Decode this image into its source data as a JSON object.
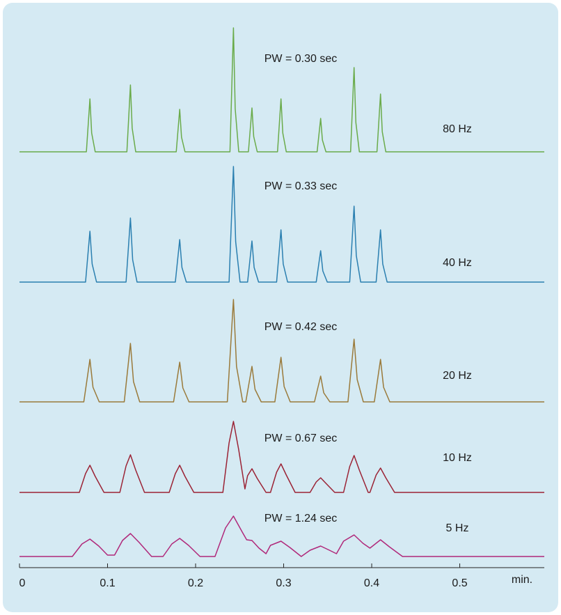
{
  "chart_data": {
    "type": "line",
    "x_label": "min.",
    "xlim": [
      0,
      0.596
    ],
    "xticks": [
      0,
      0.1,
      0.2,
      0.3,
      0.4,
      0.5
    ],
    "ylim": [
      0,
      180
    ],
    "series": [
      {
        "name": "80 Hz",
        "annotation": "PW = 0.30 sec",
        "color": "#6aab4a",
        "x": [
          0,
          0.076,
          0.08,
          0.082,
          0.086,
          0.122,
          0.126,
          0.128,
          0.132,
          0.178,
          0.182,
          0.184,
          0.188,
          0.239,
          0.243,
          0.245,
          0.249,
          0.26,
          0.264,
          0.266,
          0.27,
          0.293,
          0.297,
          0.299,
          0.303,
          0.338,
          0.342,
          0.344,
          0.348,
          0.376,
          0.38,
          0.382,
          0.386,
          0.406,
          0.41,
          0.412,
          0.416,
          0.596
        ],
        "values": [
          0,
          0,
          76,
          27,
          0,
          0,
          96,
          34,
          0,
          0,
          61,
          21,
          0,
          0,
          178,
          62,
          0,
          0,
          63,
          22,
          0,
          0,
          76,
          27,
          0,
          0,
          48,
          17,
          0,
          0,
          121,
          42,
          0,
          0,
          83,
          29,
          0,
          0
        ]
      },
      {
        "name": "40 Hz",
        "annotation": "PW = 0.33 sec",
        "color": "#2a7fb0",
        "x": [
          0,
          0.075,
          0.08,
          0.0825,
          0.0875,
          0.121,
          0.126,
          0.1285,
          0.1335,
          0.177,
          0.182,
          0.1845,
          0.1895,
          0.238,
          0.243,
          0.2455,
          0.2505,
          0.259,
          0.264,
          0.2665,
          0.2715,
          0.292,
          0.297,
          0.2995,
          0.3045,
          0.337,
          0.342,
          0.3445,
          0.3495,
          0.375,
          0.38,
          0.3825,
          0.3875,
          0.405,
          0.41,
          0.4125,
          0.4175,
          0.596
        ],
        "values": [
          0,
          0,
          73,
          26,
          0,
          0,
          92,
          32,
          0,
          0,
          61,
          21,
          0,
          0,
          166,
          58,
          0,
          0,
          59,
          21,
          0,
          0,
          75,
          26,
          0,
          0,
          45,
          16,
          0,
          0,
          109,
          38,
          0,
          0,
          75,
          26,
          0,
          0
        ]
      },
      {
        "name": "20 Hz",
        "annotation": "PW = 0.42 sec",
        "color": "#9a7a3a",
        "x": [
          0,
          0.073,
          0.08,
          0.0835,
          0.0905,
          0.119,
          0.126,
          0.1295,
          0.1365,
          0.175,
          0.182,
          0.1855,
          0.1925,
          0.236,
          0.243,
          0.2465,
          0.2535,
          0.257,
          0.264,
          0.2675,
          0.2745,
          0.29,
          0.297,
          0.3005,
          0.3075,
          0.335,
          0.342,
          0.3455,
          0.3525,
          0.373,
          0.38,
          0.3835,
          0.3905,
          0.403,
          0.41,
          0.4135,
          0.4205,
          0.596
        ],
        "values": [
          0,
          0,
          61,
          21,
          0,
          0,
          84,
          29,
          0,
          0,
          57,
          20,
          0,
          0,
          147,
          51,
          0,
          0,
          51,
          18,
          0,
          0,
          64,
          22,
          0,
          0,
          37,
          13,
          0,
          0,
          90,
          32,
          0,
          0,
          61,
          21,
          0,
          0
        ]
      },
      {
        "name": "10 Hz",
        "annotation": "PW = 0.67 sec",
        "color": "#9b2335",
        "x": [
          0,
          0.068,
          0.075,
          0.08,
          0.086,
          0.096,
          0.114,
          0.121,
          0.126,
          0.132,
          0.142,
          0.17,
          0.177,
          0.182,
          0.188,
          0.198,
          0.231,
          0.238,
          0.243,
          0.249,
          0.256,
          0.259,
          0.264,
          0.27,
          0.28,
          0.285,
          0.292,
          0.297,
          0.303,
          0.313,
          0.33,
          0.337,
          0.342,
          0.348,
          0.358,
          0.368,
          0.375,
          0.38,
          0.386,
          0.396,
          0.398,
          0.405,
          0.41,
          0.416,
          0.426,
          0.596
        ],
        "values": [
          0,
          0,
          27,
          39,
          23,
          0,
          0,
          38,
          54,
          32,
          0,
          0,
          27,
          39,
          23,
          0,
          0,
          71,
          102,
          61,
          5,
          24,
          34,
          20,
          0,
          0,
          29,
          41,
          25,
          0,
          0,
          15,
          21,
          13,
          0,
          0,
          37,
          53,
          32,
          0,
          0,
          25,
          35,
          21,
          0,
          0
        ]
      },
      {
        "name": "5 Hz",
        "annotation": "PW = 1.24 sec",
        "color": "#b0287a",
        "x": [
          0,
          0.06,
          0.071,
          0.08,
          0.09,
          0.1,
          0.108,
          0.117,
          0.126,
          0.136,
          0.15,
          0.163,
          0.173,
          0.182,
          0.192,
          0.205,
          0.222,
          0.234,
          0.243,
          0.253,
          0.258,
          0.264,
          0.272,
          0.28,
          0.285,
          0.297,
          0.307,
          0.32,
          0.33,
          0.342,
          0.352,
          0.36,
          0.368,
          0.38,
          0.39,
          0.398,
          0.41,
          0.42,
          0.435,
          0.596
        ],
        "values": [
          0,
          0,
          18,
          25,
          15,
          2,
          2,
          23,
          33,
          20,
          0,
          0,
          18,
          26,
          16,
          0,
          0,
          41,
          58,
          35,
          24,
          23,
          12,
          4,
          16,
          22,
          13,
          0,
          9,
          15,
          9,
          4,
          22,
          31,
          19,
          12,
          24,
          14,
          0,
          0
        ]
      }
    ]
  }
}
